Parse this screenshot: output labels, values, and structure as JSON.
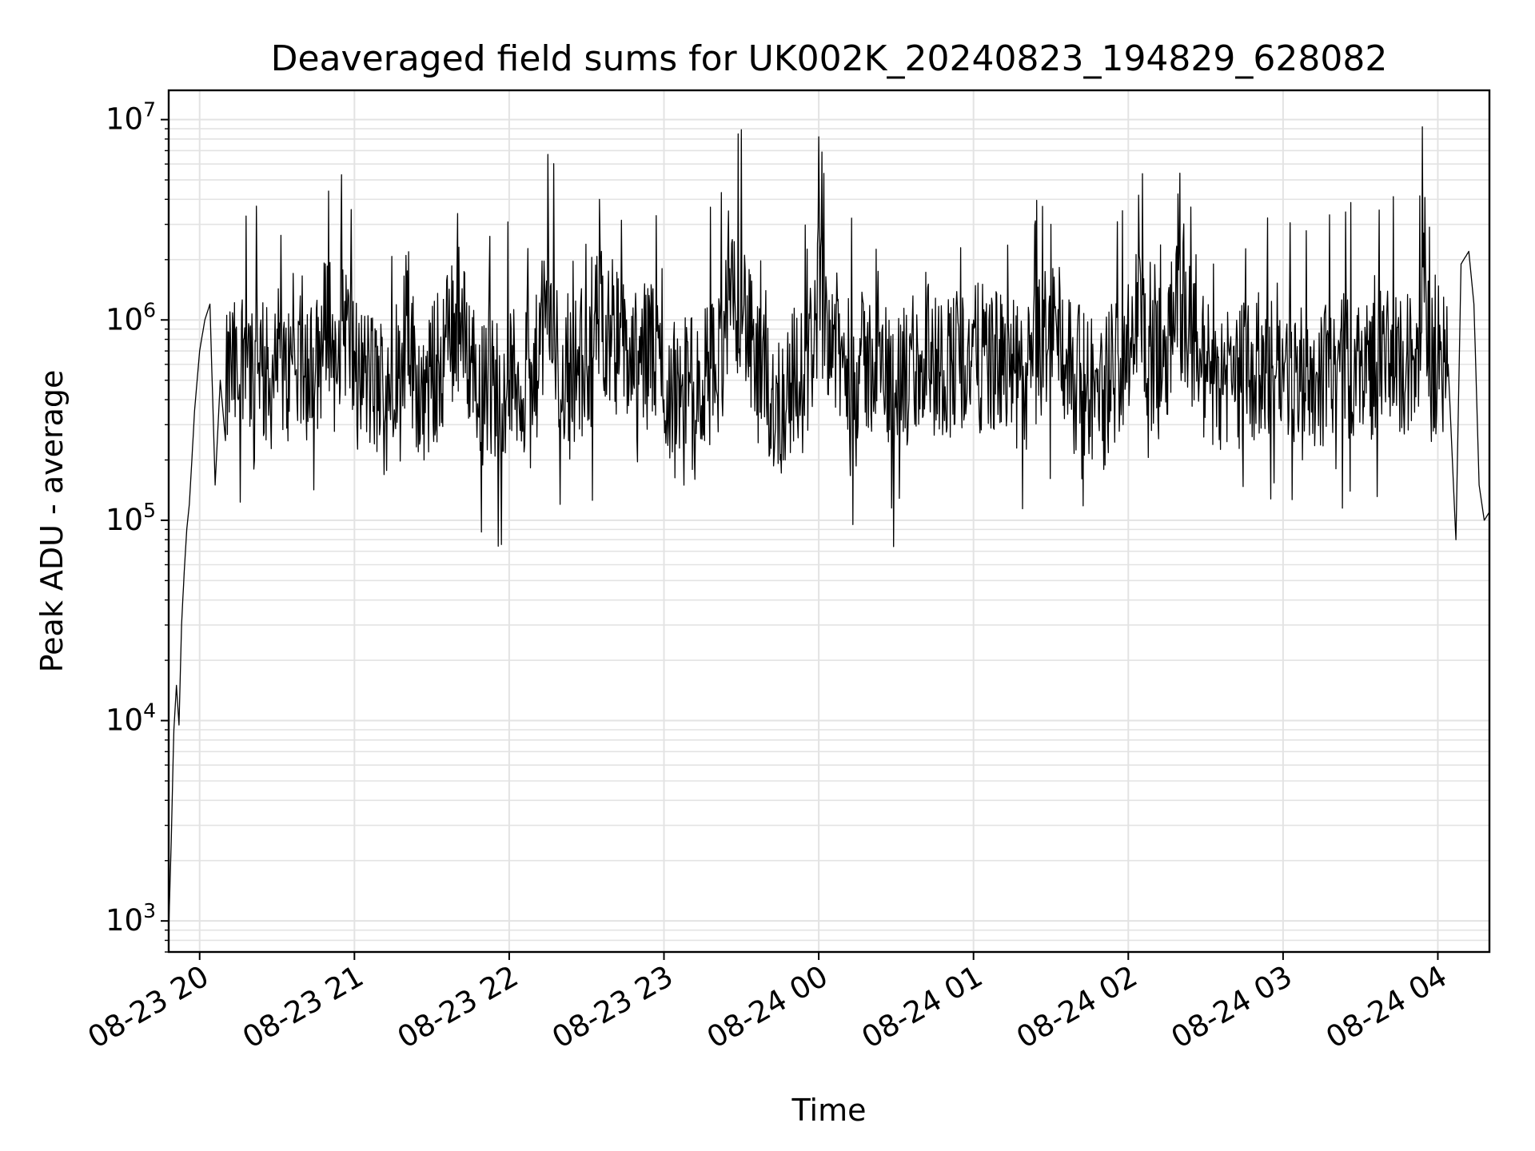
{
  "chart_data": {
    "type": "line",
    "title": "Deaveraged field sums for UK002K_20240823_194829_628082",
    "xlabel": "Time",
    "ylabel": "Peak ADU - average",
    "yscale": "log",
    "xlim": [
      "2024-08-23 19:48",
      "2024-08-24 04:20"
    ],
    "ylim": [
      700,
      14000000
    ],
    "grid": "on (major and minor, light gray)",
    "legend": "none",
    "x_ticks": [
      "08-23 20",
      "08-23 21",
      "08-23 22",
      "08-23 23",
      "08-24 00",
      "08-24 01",
      "08-24 02",
      "08-24 03",
      "08-24 04"
    ],
    "y_ticks": [
      {
        "base": "10",
        "exp": "3",
        "value": 1000
      },
      {
        "base": "10",
        "exp": "4",
        "value": 10000
      },
      {
        "base": "10",
        "exp": "5",
        "value": 100000
      },
      {
        "base": "10",
        "exp": "6",
        "value": 1000000
      },
      {
        "base": "10",
        "exp": "7",
        "value": 10000000
      }
    ],
    "series": [
      {
        "color": "#000000",
        "x": [
          "2024-08-23 19:48",
          "2024-08-23 19:49",
          "2024-08-23 19:50",
          "2024-08-23 19:51",
          "2024-08-23 19:52",
          "2024-08-23 19:53",
          "2024-08-23 19:54",
          "2024-08-23 19:55",
          "2024-08-23 19:56",
          "2024-08-23 19:57",
          "2024-08-23 19:58",
          "2024-08-23 20:00",
          "2024-08-23 20:02",
          "2024-08-23 20:04",
          "2024-08-23 20:06",
          "2024-08-23 20:08",
          "2024-08-23 20:10",
          "2024-08-23 20:12",
          "2024-08-23 20:15",
          "2024-08-23 20:18",
          "2024-08-23 20:21",
          "2024-08-23 20:22",
          "2024-08-23 20:24",
          "2024-08-23 20:27",
          "2024-08-23 20:30",
          "2024-08-23 20:33",
          "2024-08-23 20:36",
          "2024-08-23 20:40",
          "2024-08-23 20:45",
          "2024-08-23 20:50",
          "2024-08-23 20:53",
          "2024-08-23 20:55",
          "2024-08-23 21:00",
          "2024-08-23 21:05",
          "2024-08-23 21:10",
          "2024-08-23 21:20",
          "2024-08-23 21:27",
          "2024-08-23 21:30",
          "2024-08-23 21:40",
          "2024-08-23 21:50",
          "2024-08-23 22:00",
          "2024-08-23 22:05",
          "2024-08-23 22:09",
          "2024-08-23 22:15",
          "2024-08-23 22:20",
          "2024-08-23 22:24",
          "2024-08-23 22:30",
          "2024-08-23 22:35",
          "2024-08-23 22:40",
          "2024-08-23 22:45",
          "2024-08-23 22:50",
          "2024-08-23 22:55",
          "2024-08-23 23:00",
          "2024-08-23 23:05",
          "2024-08-23 23:10",
          "2024-08-23 23:12",
          "2024-08-23 23:15",
          "2024-08-23 23:20",
          "2024-08-23 23:25",
          "2024-08-23 23:30",
          "2024-08-23 23:35",
          "2024-08-23 23:40",
          "2024-08-23 23:45",
          "2024-08-23 23:50",
          "2024-08-23 23:53",
          "2024-08-23 23:56",
          "2024-08-24 00:00",
          "2024-08-24 00:10",
          "2024-08-24 00:20",
          "2024-08-24 00:30",
          "2024-08-24 00:35",
          "2024-08-24 00:40",
          "2024-08-24 00:50",
          "2024-08-24 01:00",
          "2024-08-24 01:10",
          "2024-08-24 01:20",
          "2024-08-24 01:30",
          "2024-08-24 01:40",
          "2024-08-24 01:45",
          "2024-08-24 01:50",
          "2024-08-24 01:53",
          "2024-08-24 02:00",
          "2024-08-24 02:04",
          "2024-08-24 02:10",
          "2024-08-24 02:20",
          "2024-08-24 02:30",
          "2024-08-24 02:40",
          "2024-08-24 02:50",
          "2024-08-24 03:00",
          "2024-08-24 03:10",
          "2024-08-24 03:20",
          "2024-08-24 03:30",
          "2024-08-24 03:40",
          "2024-08-24 03:45",
          "2024-08-24 03:48",
          "2024-08-24 03:50",
          "2024-08-24 03:54",
          "2024-08-24 03:57",
          "2024-08-24 04:00",
          "2024-08-24 04:04",
          "2024-08-24 04:07",
          "2024-08-24 04:09",
          "2024-08-24 04:12",
          "2024-08-24 04:14",
          "2024-08-24 04:16",
          "2024-08-24 04:18",
          "2024-08-24 04:20"
        ],
        "y": [
          900,
          2500,
          9000,
          15000,
          9500,
          30000,
          55000,
          90000,
          120000,
          200000,
          350000,
          700000,
          1000000,
          1200000,
          150000,
          500000,
          250000,
          800000,
          400000,
          3300000,
          180000,
          3700000,
          600000,
          400000,
          900000,
          500000,
          600000,
          700000,
          600000,
          4400000,
          500000,
          5300000,
          700000,
          500000,
          300000,
          2100000,
          200000,
          500000,
          3400000,
          300000,
          500000,
          400000,
          300000,
          6700000,
          400000,
          700000,
          600000,
          4000000,
          2000000,
          1100000,
          700000,
          1500000,
          400000,
          300000,
          500000,
          160000,
          500000,
          600000,
          3500000,
          8900000,
          600000,
          300000,
          200000,
          500000,
          400000,
          700000,
          8200000,
          600000,
          800000,
          500000,
          400000,
          700000,
          800000,
          1000000,
          800000,
          400000,
          3000000,
          500000,
          400000,
          250000,
          500000,
          1500000,
          4200000,
          500000,
          5400000,
          600000,
          500000,
          700000,
          600000,
          500000,
          600000,
          700000,
          800000,
          600000,
          700000,
          800000,
          9200000,
          600000,
          700000,
          600000,
          80000,
          1900000,
          2200000,
          1200000,
          150000,
          100000,
          110000
        ]
      }
    ]
  }
}
